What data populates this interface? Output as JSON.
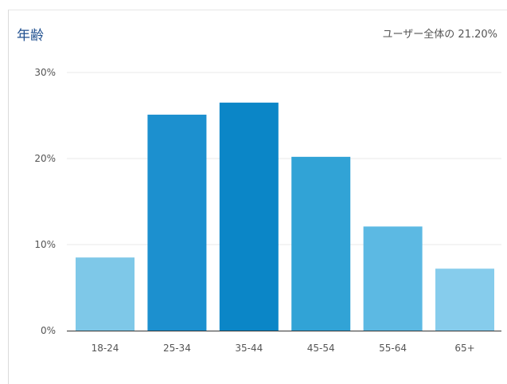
{
  "header": {
    "title": "年齢",
    "summary": "ユーザー全体の 21.20%"
  },
  "chart_data": {
    "type": "bar",
    "title": "年齢",
    "categories": [
      "18-24",
      "25-34",
      "35-44",
      "45-54",
      "55-64",
      "65+"
    ],
    "values": [
      8.5,
      25.1,
      26.5,
      20.2,
      12.1,
      7.2
    ],
    "colors": [
      "#7ec8e8",
      "#1c90cf",
      "#0b86c7",
      "#31a3d6",
      "#5cb9e3",
      "#86ccec"
    ],
    "y_ticks": [
      0,
      10,
      20,
      30
    ],
    "y_tick_labels": [
      "0%",
      "10%",
      "20%",
      "30%"
    ],
    "ylim": [
      0,
      30
    ],
    "grid": true,
    "legend": "none"
  }
}
